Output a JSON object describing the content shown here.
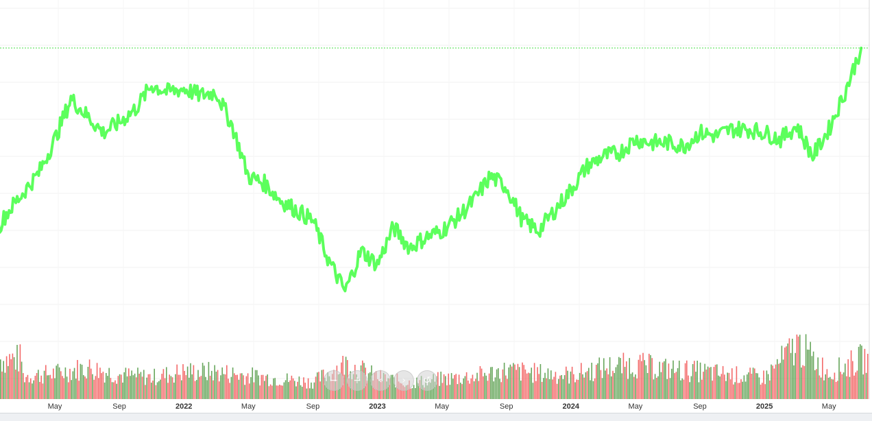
{
  "chart_data": {
    "type": "line",
    "series": [
      {
        "x": [
          "2021-01",
          "2021-02",
          "2021-03",
          "2021-04",
          "2021-05",
          "2021-06",
          "2021-07",
          "2021-08",
          "2021-09",
          "2021-10",
          "2021-11",
          "2021-12",
          "2022-01",
          "2022-02",
          "2022-03",
          "2022-04",
          "2022-05",
          "2022-06",
          "2022-07",
          "2022-08",
          "2022-09",
          "2022-10",
          "2022-11",
          "2022-12",
          "2023-01",
          "2023-02",
          "2023-03",
          "2023-04",
          "2023-05",
          "2023-06",
          "2023-07",
          "2023-08",
          "2023-09",
          "2023-10",
          "2023-11",
          "2023-12",
          "2024-01",
          "2024-02",
          "2024-03",
          "2024-04",
          "2024-05",
          "2024-06",
          "2024-07",
          "2024-08",
          "2024-09",
          "2024-10",
          "2024-11",
          "2024-12",
          "2025-01",
          "2025-02",
          "2025-03",
          "2025-04",
          "2025-05",
          "2025-06",
          "2025-07"
        ],
        "values": [
          28,
          36,
          42,
          48,
          58,
          70,
          65,
          60,
          63,
          67,
          74,
          72,
          73,
          71,
          72,
          62,
          47,
          45,
          40,
          37,
          34,
          22,
          13,
          25,
          21,
          32,
          26,
          29,
          31,
          35,
          40,
          47,
          44,
          34,
          31,
          37,
          43,
          50,
          53,
          54,
          58,
          57,
          57,
          56,
          60,
          59,
          61,
          61,
          60,
          58,
          62,
          53,
          61,
          72,
          85
        ]
      }
    ],
    "volume": {
      "x": [
        "2021-03",
        "2021-05",
        "2021-07",
        "2021-09",
        "2021-11",
        "2022-01",
        "2022-03",
        "2022-05",
        "2022-07",
        "2022-09",
        "2022-11",
        "2023-01",
        "2023-03",
        "2023-05",
        "2023-07",
        "2023-09",
        "2023-11",
        "2024-01",
        "2024-03",
        "2024-05",
        "2024-07",
        "2024-09",
        "2024-11",
        "2025-01",
        "2025-03",
        "2025-05",
        "2025-07"
      ],
      "values": [
        40,
        45,
        55,
        42,
        38,
        48,
        47,
        41,
        35,
        30,
        62,
        38,
        28,
        35,
        40,
        50,
        45,
        42,
        55,
        60,
        52,
        48,
        42,
        38,
        95,
        45,
        70
      ]
    },
    "x_tick_labels": [
      "May",
      "Sep",
      "2022",
      "May",
      "Sep",
      "2023",
      "May",
      "Sep",
      "2024",
      "May",
      "Sep",
      "2025",
      "May"
    ],
    "y_tick_labels": [],
    "legend": "none",
    "grid": true,
    "line_color": "#5cff5c",
    "up_color": "#5a9e4e",
    "down_color": "#f25c5c",
    "reference_line_color": "#44dd44"
  },
  "nav": {
    "buttons": [
      {
        "icon": "zoom-out-icon",
        "glyph": "−"
      },
      {
        "icon": "zoom-in-icon",
        "glyph": "+"
      },
      {
        "icon": "scroll-left-icon",
        "glyph": "‹"
      },
      {
        "icon": "scroll-right-icon",
        "glyph": "›"
      },
      {
        "icon": "reset-icon",
        "glyph": "↺"
      }
    ]
  }
}
